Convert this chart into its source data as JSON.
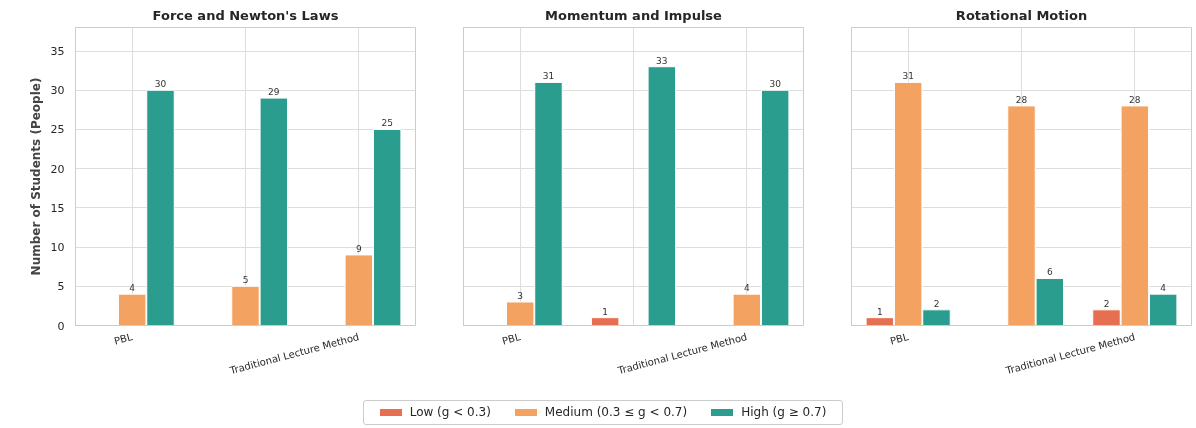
{
  "chart_data": [
    {
      "type": "bar",
      "title": "Force and Newton's Laws",
      "ylabel": "Number of Students (People)",
      "categories": [
        "PBL",
        null,
        "Traditional Lecture Method"
      ],
      "ylim": [
        0,
        38
      ],
      "yticks": [
        0,
        5,
        10,
        15,
        20,
        25,
        30,
        35
      ],
      "grid": true,
      "data_labels": true,
      "legend": "bottom",
      "series": [
        {
          "name": "Low (g < 0.3)",
          "color": "#e76f51",
          "values": [
            null,
            null,
            null
          ]
        },
        {
          "name": "Medium (0.3 ≤ g < 0.7)",
          "color": "#f4a261",
          "values": [
            4,
            5,
            9
          ]
        },
        {
          "name": "High (g ≥ 0.7)",
          "color": "#2a9d8f",
          "values": [
            30,
            29,
            25
          ]
        }
      ]
    },
    {
      "type": "bar",
      "title": "Momentum and Impulse",
      "categories": [
        "PBL",
        null,
        "Traditional Lecture Method"
      ],
      "ylim": [
        0,
        38
      ],
      "yticks": [
        0,
        5,
        10,
        15,
        20,
        25,
        30,
        35
      ],
      "grid": true,
      "data_labels": true,
      "tick_labels": "x",
      "series": [
        {
          "color": "#e76f51",
          "values": [
            null,
            1,
            null
          ]
        },
        {
          "color": "#f4a261",
          "values": [
            3,
            null,
            4
          ]
        },
        {
          "color": "#2a9d8f",
          "values": [
            31,
            33,
            30
          ]
        }
      ]
    },
    {
      "type": "bar",
      "title": "Rotational Motion",
      "categories": [
        "PBL",
        null,
        "Traditional Lecture Method"
      ],
      "ylim": [
        0,
        38
      ],
      "yticks": [
        0,
        5,
        10,
        15,
        20,
        25,
        30,
        35
      ],
      "grid": true,
      "data_labels": true,
      "tick_labels": "x",
      "series": [
        {
          "color": "#e76f51",
          "values": [
            1,
            null,
            2
          ]
        },
        {
          "color": "#f4a261",
          "values": [
            31,
            28,
            28
          ]
        },
        {
          "color": "#2a9d8f",
          "values": [
            2,
            6,
            4
          ]
        }
      ]
    }
  ]
}
